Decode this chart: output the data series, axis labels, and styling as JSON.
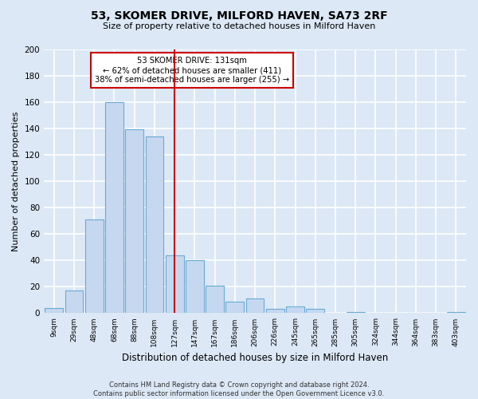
{
  "title": "53, SKOMER DRIVE, MILFORD HAVEN, SA73 2RF",
  "subtitle": "Size of property relative to detached houses in Milford Haven",
  "xlabel": "Distribution of detached houses by size in Milford Haven",
  "ylabel": "Number of detached properties",
  "bar_labels": [
    "9sqm",
    "29sqm",
    "48sqm",
    "68sqm",
    "88sqm",
    "108sqm",
    "127sqm",
    "147sqm",
    "167sqm",
    "186sqm",
    "206sqm",
    "226sqm",
    "245sqm",
    "265sqm",
    "285sqm",
    "305sqm",
    "324sqm",
    "344sqm",
    "364sqm",
    "383sqm",
    "403sqm"
  ],
  "bar_values": [
    4,
    17,
    71,
    160,
    139,
    134,
    44,
    40,
    21,
    9,
    11,
    3,
    5,
    3,
    0,
    1,
    0,
    0,
    0,
    0,
    1
  ],
  "bar_color": "#c5d8f0",
  "bar_edge_color": "#6aaad4",
  "vline_x_index": 6,
  "vline_color": "#cc0000",
  "annotation_line1": "53 SKOMER DRIVE: 131sqm",
  "annotation_line2": "← 62% of detached houses are smaller (411)",
  "annotation_line3": "38% of semi-detached houses are larger (255) →",
  "annotation_box_color": "#ffffff",
  "annotation_box_edge_color": "#cc0000",
  "ylim": [
    0,
    200
  ],
  "yticks": [
    0,
    20,
    40,
    60,
    80,
    100,
    120,
    140,
    160,
    180,
    200
  ],
  "footer_line1": "Contains HM Land Registry data © Crown copyright and database right 2024.",
  "footer_line2": "Contains public sector information licensed under the Open Government Licence v3.0.",
  "background_color": "#dce8f5",
  "plot_background_color": "#dce8f5",
  "grid_color": "#ffffff",
  "title_fontsize": 10,
  "subtitle_fontsize": 8,
  "ylabel_fontsize": 8,
  "xlabel_fontsize": 8.5
}
